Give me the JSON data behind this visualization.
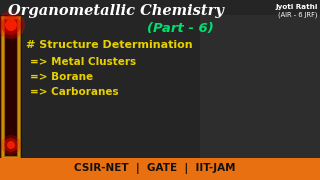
{
  "title": "Organometallic Chemistry",
  "subtitle": "(Part - 6)",
  "name": "Jyoti Rathi",
  "rank": "(AIR - 6 JRF)",
  "hash_text": "# Structure Determination",
  "bullet1": "=> Metal Clusters",
  "bullet2": "=> Borane",
  "bullet3": "=> Carboranes",
  "footer": "CSIR-NET  |  GATE  |  IIT-JAM",
  "bg_dark": "#1c1c1c",
  "bg_center": "#2a2a2a",
  "footer_color": "#e87010",
  "title_color": "#ffffff",
  "subtitle_color": "#00e070",
  "yellow_color": "#e8d000",
  "white_color": "#ffffff",
  "footer_text_color": "#1a1a1a",
  "border_gold": "#c8a000",
  "left_dark_red": "#3a0000",
  "left_red_bright": "#cc2200",
  "gold_line": "#c8900a"
}
